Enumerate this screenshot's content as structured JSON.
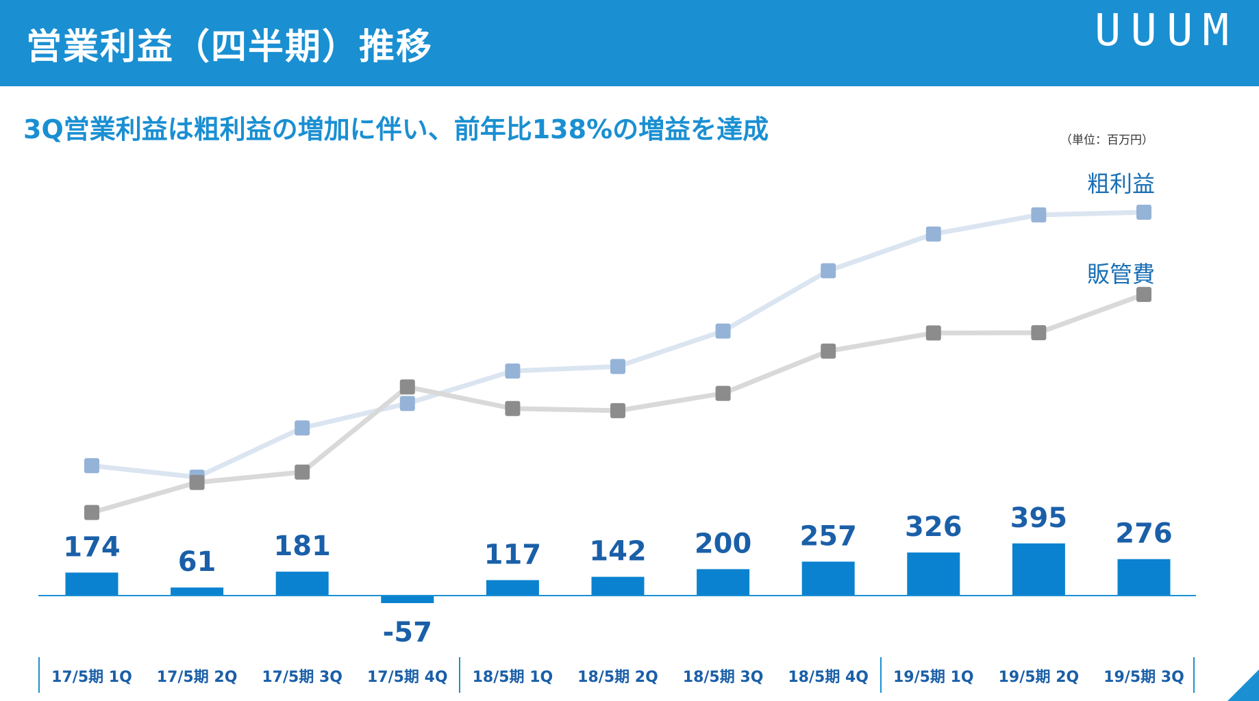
{
  "header": {
    "title": "営業利益（四半期）推移",
    "logo": "UUUM"
  },
  "subtitle": "3Q営業利益は粗利益の増加に伴い、前年比138%の増益を達成",
  "unit_label": "（単位：百万円）",
  "colors": {
    "header_bg": "#1a8fd2",
    "bar": "#0b82d0",
    "value_label": "#1a5fa8",
    "gross_profit_line": "#dbe5f1",
    "gross_profit_marker": "#95b3d7",
    "sga_line": "#d9d9d9",
    "sga_marker": "#8c8c8c"
  },
  "chart_data": {
    "type": "bar",
    "title": "営業利益（四半期）推移",
    "categories": [
      "17/5期 1Q",
      "17/5期 2Q",
      "17/5期 3Q",
      "17/5期 4Q",
      "18/5期 1Q",
      "18/5期 2Q",
      "18/5期 3Q",
      "18/5期 4Q",
      "19/5期 1Q",
      "19/5期 2Q",
      "19/5期 3Q"
    ],
    "series": [
      {
        "name": "営業利益",
        "kind": "bar",
        "values": [
          174,
          61,
          181,
          -57,
          117,
          142,
          200,
          257,
          326,
          395,
          276
        ]
      },
      {
        "name": "粗利益",
        "kind": "line",
        "note": "relative trend, no axis shown",
        "values": [
          397,
          354,
          539,
          631,
          753,
          770,
          903,
          1130,
          1268,
          1340,
          1350
        ]
      },
      {
        "name": "販管費",
        "kind": "line",
        "note": "relative trend, no axis shown",
        "values": [
          221,
          334,
          373,
          693,
          612,
          604,
          669,
          828,
          896,
          897,
          1041
        ]
      }
    ],
    "legend": [
      "粗利益",
      "販管費"
    ],
    "ylim": [
      -100,
      1500
    ],
    "xlabel": "",
    "ylabel": ""
  }
}
